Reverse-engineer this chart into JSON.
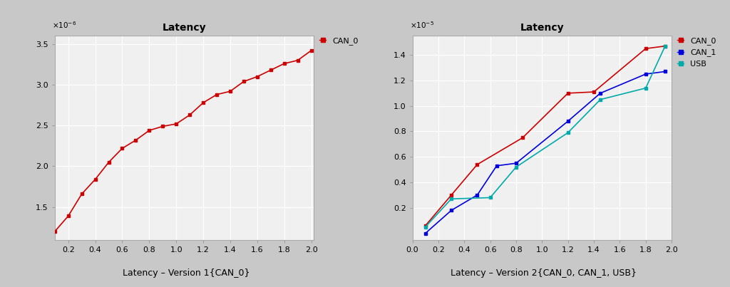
{
  "plot1": {
    "title": "Latency",
    "xlim": [
      0.1,
      2.02
    ],
    "ylim": [
      1.1,
      3.6
    ],
    "xticks": [
      0.2,
      0.4,
      0.6,
      0.8,
      1.0,
      1.2,
      1.4,
      1.6,
      1.8,
      2.0
    ],
    "yticks": [
      1.5,
      2.0,
      2.5,
      3.0,
      3.5
    ],
    "can0_x": [
      0.1,
      0.2,
      0.3,
      0.4,
      0.5,
      0.6,
      0.7,
      0.8,
      0.9,
      1.0,
      1.1,
      1.2,
      1.3,
      1.4,
      1.5,
      1.6,
      1.7,
      1.8,
      1.9,
      2.0
    ],
    "can0_y": [
      1.2,
      1.39,
      1.66,
      1.84,
      2.05,
      2.22,
      2.32,
      2.44,
      2.49,
      2.52,
      2.63,
      2.78,
      2.88,
      2.92,
      3.04,
      3.1,
      3.18,
      3.26,
      3.3,
      3.42
    ],
    "can0_color": "#cc0000",
    "legend_label": "CAN_0",
    "caption": "Latency – Version 1{CAN_0}"
  },
  "plot2": {
    "title": "Latency",
    "xlim": [
      0.0,
      2.0
    ],
    "ylim": [
      -0.05,
      1.55
    ],
    "xticks": [
      0.0,
      0.2,
      0.4,
      0.6,
      0.8,
      1.0,
      1.2,
      1.4,
      1.6,
      1.8,
      2.0
    ],
    "yticks": [
      0.2,
      0.4,
      0.6,
      0.8,
      1.0,
      1.2,
      1.4
    ],
    "can0_x": [
      0.1,
      0.3,
      0.5,
      0.85,
      1.2,
      1.4,
      1.8,
      1.95
    ],
    "can0_y": [
      0.06,
      0.3,
      0.54,
      0.75,
      1.1,
      1.11,
      1.45,
      1.47
    ],
    "can0_color": "#cc0000",
    "can1_x": [
      0.1,
      0.3,
      0.5,
      0.65,
      0.8,
      1.2,
      1.45,
      1.8,
      1.95
    ],
    "can1_y": [
      0.0,
      0.18,
      0.3,
      0.53,
      0.55,
      0.88,
      1.1,
      1.25,
      1.27
    ],
    "can1_color": "#0000dd",
    "usb_x": [
      0.1,
      0.3,
      0.6,
      0.8,
      1.2,
      1.45,
      1.8,
      1.95
    ],
    "usb_y": [
      0.05,
      0.27,
      0.28,
      0.52,
      0.79,
      1.05,
      1.14,
      1.47
    ],
    "usb_color": "#00aaaa",
    "caption": "Latency – Version 2{CAN_0, CAN_1, USB}"
  },
  "outer_bg": "#d4d0c8",
  "panel_bg": "#ece9d8",
  "plot_area_bg": "#f0f0f0",
  "figure_bg": "#c8c8c8"
}
